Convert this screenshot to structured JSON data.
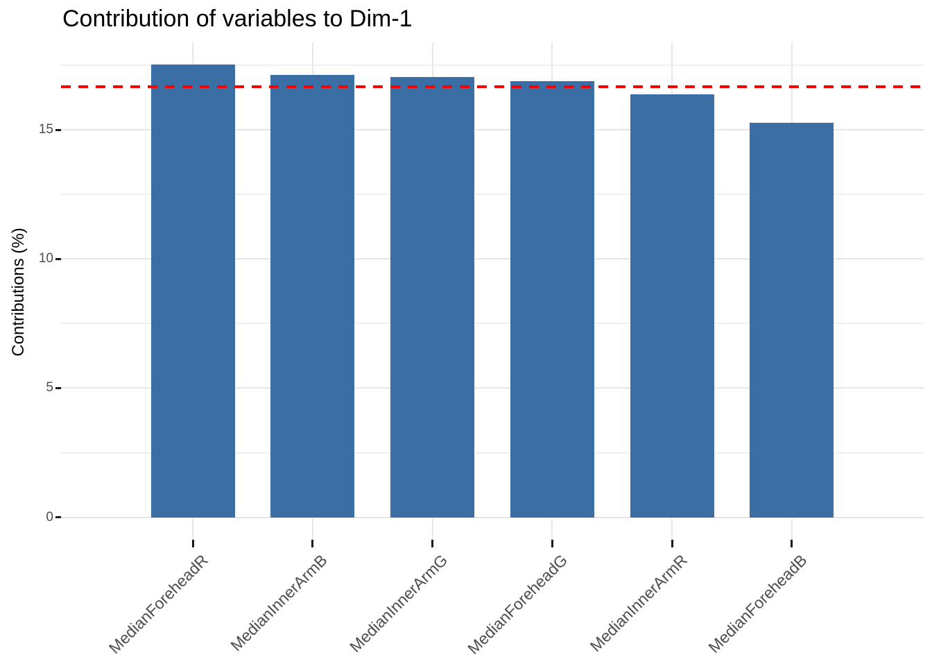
{
  "chart_data": {
    "type": "bar",
    "title": "Contribution of variables to Dim-1",
    "xlabel": "",
    "ylabel": "Contributions (%)",
    "categories": [
      "MedianForeheadR",
      "MedianInnerArmB",
      "MedianInnerArmG",
      "MedianForeheadG",
      "MedianInnerArmR",
      "MedianForeheadB"
    ],
    "values": [
      17.53,
      17.12,
      17.05,
      16.89,
      16.38,
      15.28
    ],
    "yticks": [
      0,
      5,
      10,
      15
    ],
    "yticks_minor": [
      2.5,
      7.5,
      12.5,
      17.5
    ],
    "ylim": [
      -0.87,
      18.39
    ],
    "grid": "major and minor horizontal, major vertical at category centers",
    "legend": "none",
    "bar_color": "#3a6ea5",
    "reference_line": {
      "value": 16.67,
      "color": "#ff0000",
      "style": "dashed"
    },
    "axis_text_color": "#4d4d4d",
    "x_label_rotation_deg": 45
  }
}
